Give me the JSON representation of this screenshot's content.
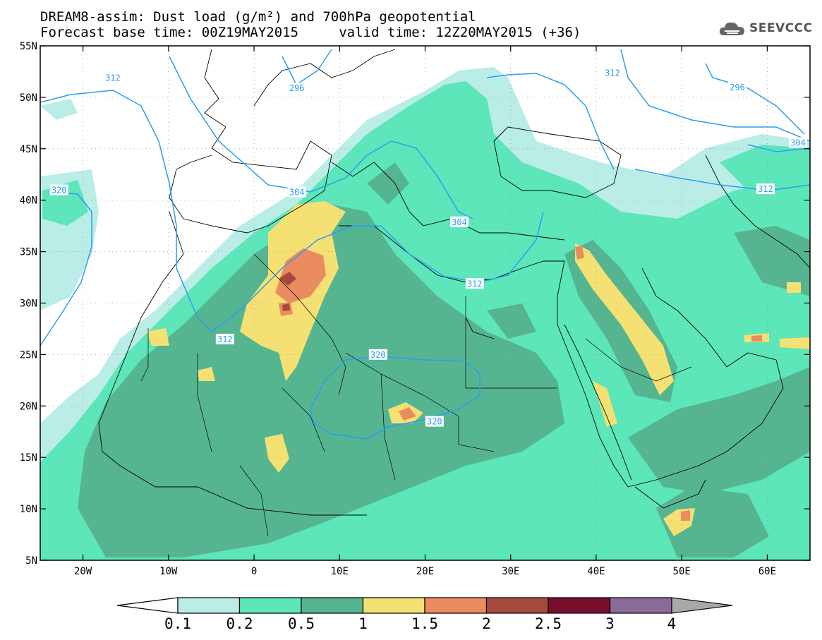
{
  "title_line1": "DREAM8-assim: Dust load (g/m²) and 700hPa geopotential",
  "title_line2": "Forecast base time: 00Z19MAY2015     valid time: 12Z20MAY2015 (+36)",
  "logo": {
    "text": "SEEVCCC",
    "icon": "cloud-icon"
  },
  "map": {
    "lon_range": [
      -25,
      65
    ],
    "lat_range": [
      5,
      55
    ],
    "lat_ticks": [
      {
        "v": 55,
        "t": "55N"
      },
      {
        "v": 50,
        "t": "50N"
      },
      {
        "v": 45,
        "t": "45N"
      },
      {
        "v": 40,
        "t": "40N"
      },
      {
        "v": 35,
        "t": "35N"
      },
      {
        "v": 30,
        "t": "30N"
      },
      {
        "v": 25,
        "t": "25N"
      },
      {
        "v": 20,
        "t": "20N"
      },
      {
        "v": 15,
        "t": "15N"
      },
      {
        "v": 10,
        "t": "10N"
      },
      {
        "v": 5,
        "t": "5N"
      }
    ],
    "lon_ticks": [
      {
        "v": -20,
        "t": "20W"
      },
      {
        "v": -10,
        "t": "10W"
      },
      {
        "v": 0,
        "t": "0"
      },
      {
        "v": 10,
        "t": "10E"
      },
      {
        "v": 20,
        "t": "20E"
      },
      {
        "v": 30,
        "t": "30E"
      },
      {
        "v": 40,
        "t": "40E"
      },
      {
        "v": 50,
        "t": "50E"
      },
      {
        "v": 60,
        "t": "60E"
      }
    ],
    "contour_labels": [
      {
        "t": "312",
        "lon": -16.5,
        "lat": 51.8
      },
      {
        "t": "320",
        "lon": -22.8,
        "lat": 40.9
      },
      {
        "t": "304",
        "lon": 5.0,
        "lat": 40.7
      },
      {
        "t": "312",
        "lon": -3.4,
        "lat": 26.4
      },
      {
        "t": "320",
        "lon": 14.5,
        "lat": 24.9
      },
      {
        "t": "320",
        "lon": 21.1,
        "lat": 18.4
      },
      {
        "t": "312",
        "lon": 25.8,
        "lat": 31.8
      },
      {
        "t": "304",
        "lon": 24.0,
        "lat": 37.8
      },
      {
        "t": "296",
        "lon": 5.0,
        "lat": 50.8
      },
      {
        "t": "312",
        "lon": 41.9,
        "lat": 52.3
      },
      {
        "t": "296",
        "lon": 56.5,
        "lat": 50.9
      },
      {
        "t": "304",
        "lon": 63.6,
        "lat": 45.5
      },
      {
        "t": "312",
        "lon": 59.8,
        "lat": 41.0
      }
    ]
  },
  "colorbar": {
    "labels": [
      "0.1",
      "0.2",
      "0.5",
      "1",
      "1.5",
      "2",
      "2.5",
      "3",
      "4"
    ],
    "colors": [
      "#ffffff",
      "#b9ede6",
      "#5ce6b9",
      "#55b590",
      "#f5e173",
      "#ea8b60",
      "#a64a3b",
      "#770f2c",
      "#8a6a99",
      "#a8a8a8"
    ]
  }
}
